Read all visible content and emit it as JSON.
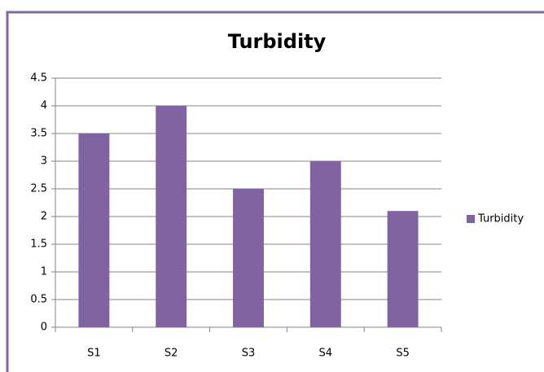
{
  "chart_data": {
    "type": "bar",
    "title": "Turbidity",
    "categories": [
      "S1",
      "S2",
      "S3",
      "S4",
      "S5"
    ],
    "series": [
      {
        "name": "Turbidity",
        "color": "#8064a2",
        "values": [
          3.5,
          4,
          2.5,
          3,
          2.1
        ]
      }
    ],
    "ylim": [
      0,
      4.5
    ],
    "yticks": [
      0,
      0.5,
      1,
      1.5,
      2,
      2.5,
      3,
      3.5,
      4,
      4.5
    ],
    "grid": true,
    "legend": "right"
  }
}
